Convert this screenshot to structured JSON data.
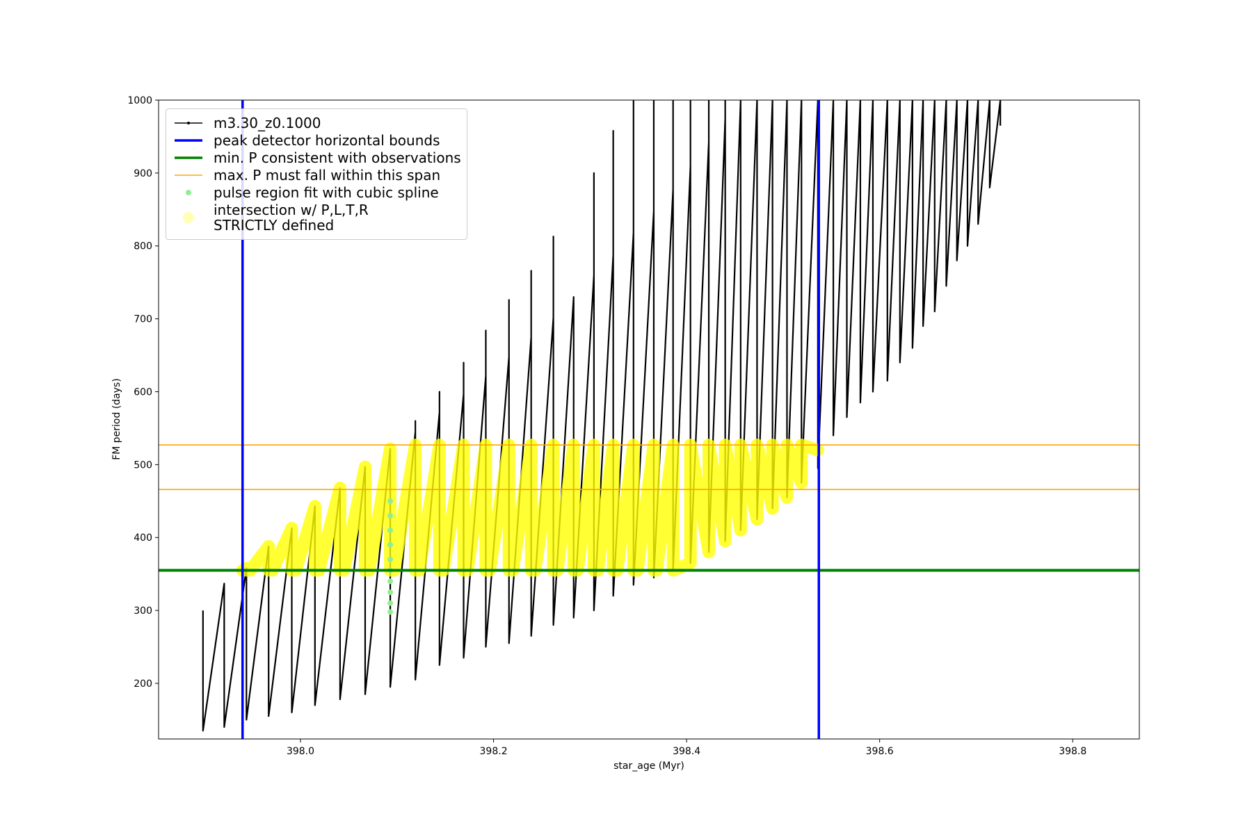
{
  "chart_data": {
    "type": "line",
    "xlabel": "star_age (Myr)",
    "ylabel": "FM period (days)",
    "xlim": [
      397.853,
      398.869
    ],
    "ylim": [
      123.7,
      1000
    ],
    "xticks": [
      {
        "value": 398.0,
        "label": "398.0"
      },
      {
        "value": 398.2,
        "label": "398.2"
      },
      {
        "value": 398.4,
        "label": "398.4"
      },
      {
        "value": 398.6,
        "label": "398.6"
      },
      {
        "value": 398.8,
        "label": "398.8"
      }
    ],
    "yticks": [
      200,
      300,
      400,
      500,
      600,
      700,
      800,
      900,
      1000
    ],
    "series": [
      {
        "name": "m3.30_z0.1000",
        "color": "#000000",
        "kind": "line",
        "x": [
          397.899,
          397.899,
          397.921,
          397.921,
          397.944,
          397.944,
          397.967,
          397.967,
          397.991,
          397.991,
          398.015,
          398.015,
          398.041,
          398.041,
          398.067,
          398.067,
          398.093,
          398.093,
          398.119,
          398.119,
          398.119,
          398.144,
          398.144,
          398.144,
          398.169,
          398.169,
          398.169,
          398.192,
          398.192,
          398.192,
          398.216,
          398.216,
          398.216,
          398.239,
          398.239,
          398.239,
          398.262,
          398.262,
          398.262,
          398.283,
          398.283,
          398.304,
          398.304,
          398.304,
          398.324,
          398.324,
          398.324,
          398.345,
          398.345,
          398.345,
          398.366,
          398.366,
          398.366,
          398.386,
          398.386,
          398.386,
          398.404,
          398.404,
          398.404,
          398.423,
          398.423,
          398.423,
          398.44,
          398.44,
          398.44,
          398.456,
          398.456,
          398.473,
          398.473,
          398.489,
          398.489,
          398.504,
          398.504,
          398.519,
          398.519,
          398.536,
          398.536,
          398.552,
          398.552,
          398.566,
          398.566,
          398.58,
          398.58,
          398.593,
          398.593,
          398.608,
          398.608,
          398.621,
          398.621,
          398.634,
          398.634,
          398.645,
          398.645,
          398.657,
          398.657,
          398.669,
          398.669,
          398.68,
          398.68,
          398.691,
          398.691,
          398.702,
          398.702,
          398.714,
          398.714,
          398.725,
          398.725
        ],
        "values": [
          300,
          135,
          337,
          140,
          358,
          150,
          388,
          155,
          413,
          160,
          443,
          170,
          468,
          178,
          497,
          185,
          522,
          195,
          545,
          560,
          205,
          572,
          600,
          225,
          597,
          640,
          235,
          622,
          684,
          250,
          648,
          726,
          255,
          675,
          766,
          265,
          702,
          813,
          280,
          730,
          290,
          760,
          900,
          300,
          788,
          958,
          320,
          818,
          1000,
          335,
          848,
          1000,
          345,
          878,
          1000,
          355,
          910,
          1000,
          365,
          943,
          1000,
          380,
          975,
          1000,
          395,
          1000,
          410,
          1000,
          425,
          1000,
          440,
          1000,
          455,
          1000,
          475,
          1000,
          495,
          1000,
          540,
          1000,
          565,
          1000,
          585,
          1000,
          600,
          1000,
          615,
          1000,
          640,
          1000,
          660,
          1000,
          690,
          1000,
          710,
          1000,
          745,
          1000,
          780,
          1000,
          800,
          1000,
          830,
          1000,
          880,
          1000,
          965
        ]
      },
      {
        "name": "peak detector horizontal bounds",
        "color": "#0000ff",
        "kind": "vline",
        "x": [
          397.94,
          398.537
        ]
      },
      {
        "name": "min. P consistent with observations",
        "color": "#008000",
        "kind": "hline",
        "values": [
          355
        ]
      },
      {
        "name": "max. P must fall within this span",
        "color": "#ffa500",
        "kind": "hline",
        "values": [
          466,
          527
        ]
      },
      {
        "name": "pulse region fit with cubic spline",
        "color": "#90ee90",
        "kind": "scatter",
        "x": [
          398.093,
          398.093,
          398.093,
          398.093,
          398.093,
          398.093,
          398.093,
          398.093,
          398.093,
          398.093
        ],
        "values": [
          298,
          310,
          325,
          340,
          355,
          370,
          390,
          410,
          430,
          450
        ]
      },
      {
        "name": "intersection w/ P,L,T,R\nSTRICTLY defined",
        "color": "#ffff00",
        "kind": "band",
        "x": [
          397.94,
          397.944,
          397.944,
          null,
          397.948,
          397.967,
          397.967,
          null,
          397.971,
          397.991,
          397.991,
          null,
          397.995,
          398.015,
          398.015,
          null,
          398.019,
          398.041,
          398.041,
          null,
          398.045,
          398.067,
          398.067,
          null,
          398.071,
          398.093,
          398.093,
          null,
          398.097,
          398.119,
          398.119,
          null,
          398.123,
          398.144,
          398.144,
          null,
          398.148,
          398.169,
          398.169,
          null,
          398.173,
          398.192,
          398.192,
          null,
          398.196,
          398.216,
          398.216,
          null,
          398.22,
          398.239,
          398.239,
          null,
          398.243,
          398.262,
          398.262,
          null,
          398.266,
          398.283,
          398.283,
          null,
          398.287,
          398.304,
          398.304,
          null,
          398.308,
          398.324,
          398.324,
          null,
          398.328,
          398.345,
          398.345,
          null,
          398.349,
          398.366,
          398.366,
          null,
          398.369,
          398.386,
          398.386,
          398.404,
          398.404,
          398.423,
          398.423,
          398.44,
          398.44,
          398.456,
          398.456,
          398.473,
          398.473,
          398.489,
          398.489,
          398.504,
          398.504,
          398.519,
          398.519,
          398.536
        ],
        "values": [
          355,
          358,
          355,
          null,
          355,
          388,
          355,
          null,
          355,
          413,
          355,
          null,
          355,
          443,
          355,
          null,
          355,
          468,
          355,
          null,
          355,
          497,
          355,
          null,
          355,
          522,
          355,
          null,
          355,
          527,
          355,
          null,
          355,
          527,
          355,
          null,
          355,
          527,
          355,
          null,
          355,
          527,
          355,
          null,
          355,
          527,
          355,
          null,
          355,
          527,
          355,
          null,
          355,
          527,
          355,
          null,
          355,
          527,
          355,
          null,
          355,
          527,
          355,
          null,
          355,
          527,
          355,
          null,
          355,
          527,
          355,
          null,
          355,
          527,
          355,
          null,
          355,
          527,
          355,
          365,
          527,
          380,
          527,
          395,
          527,
          410,
          527,
          425,
          527,
          440,
          527,
          455,
          527,
          475,
          527,
          520
        ]
      }
    ]
  }
}
